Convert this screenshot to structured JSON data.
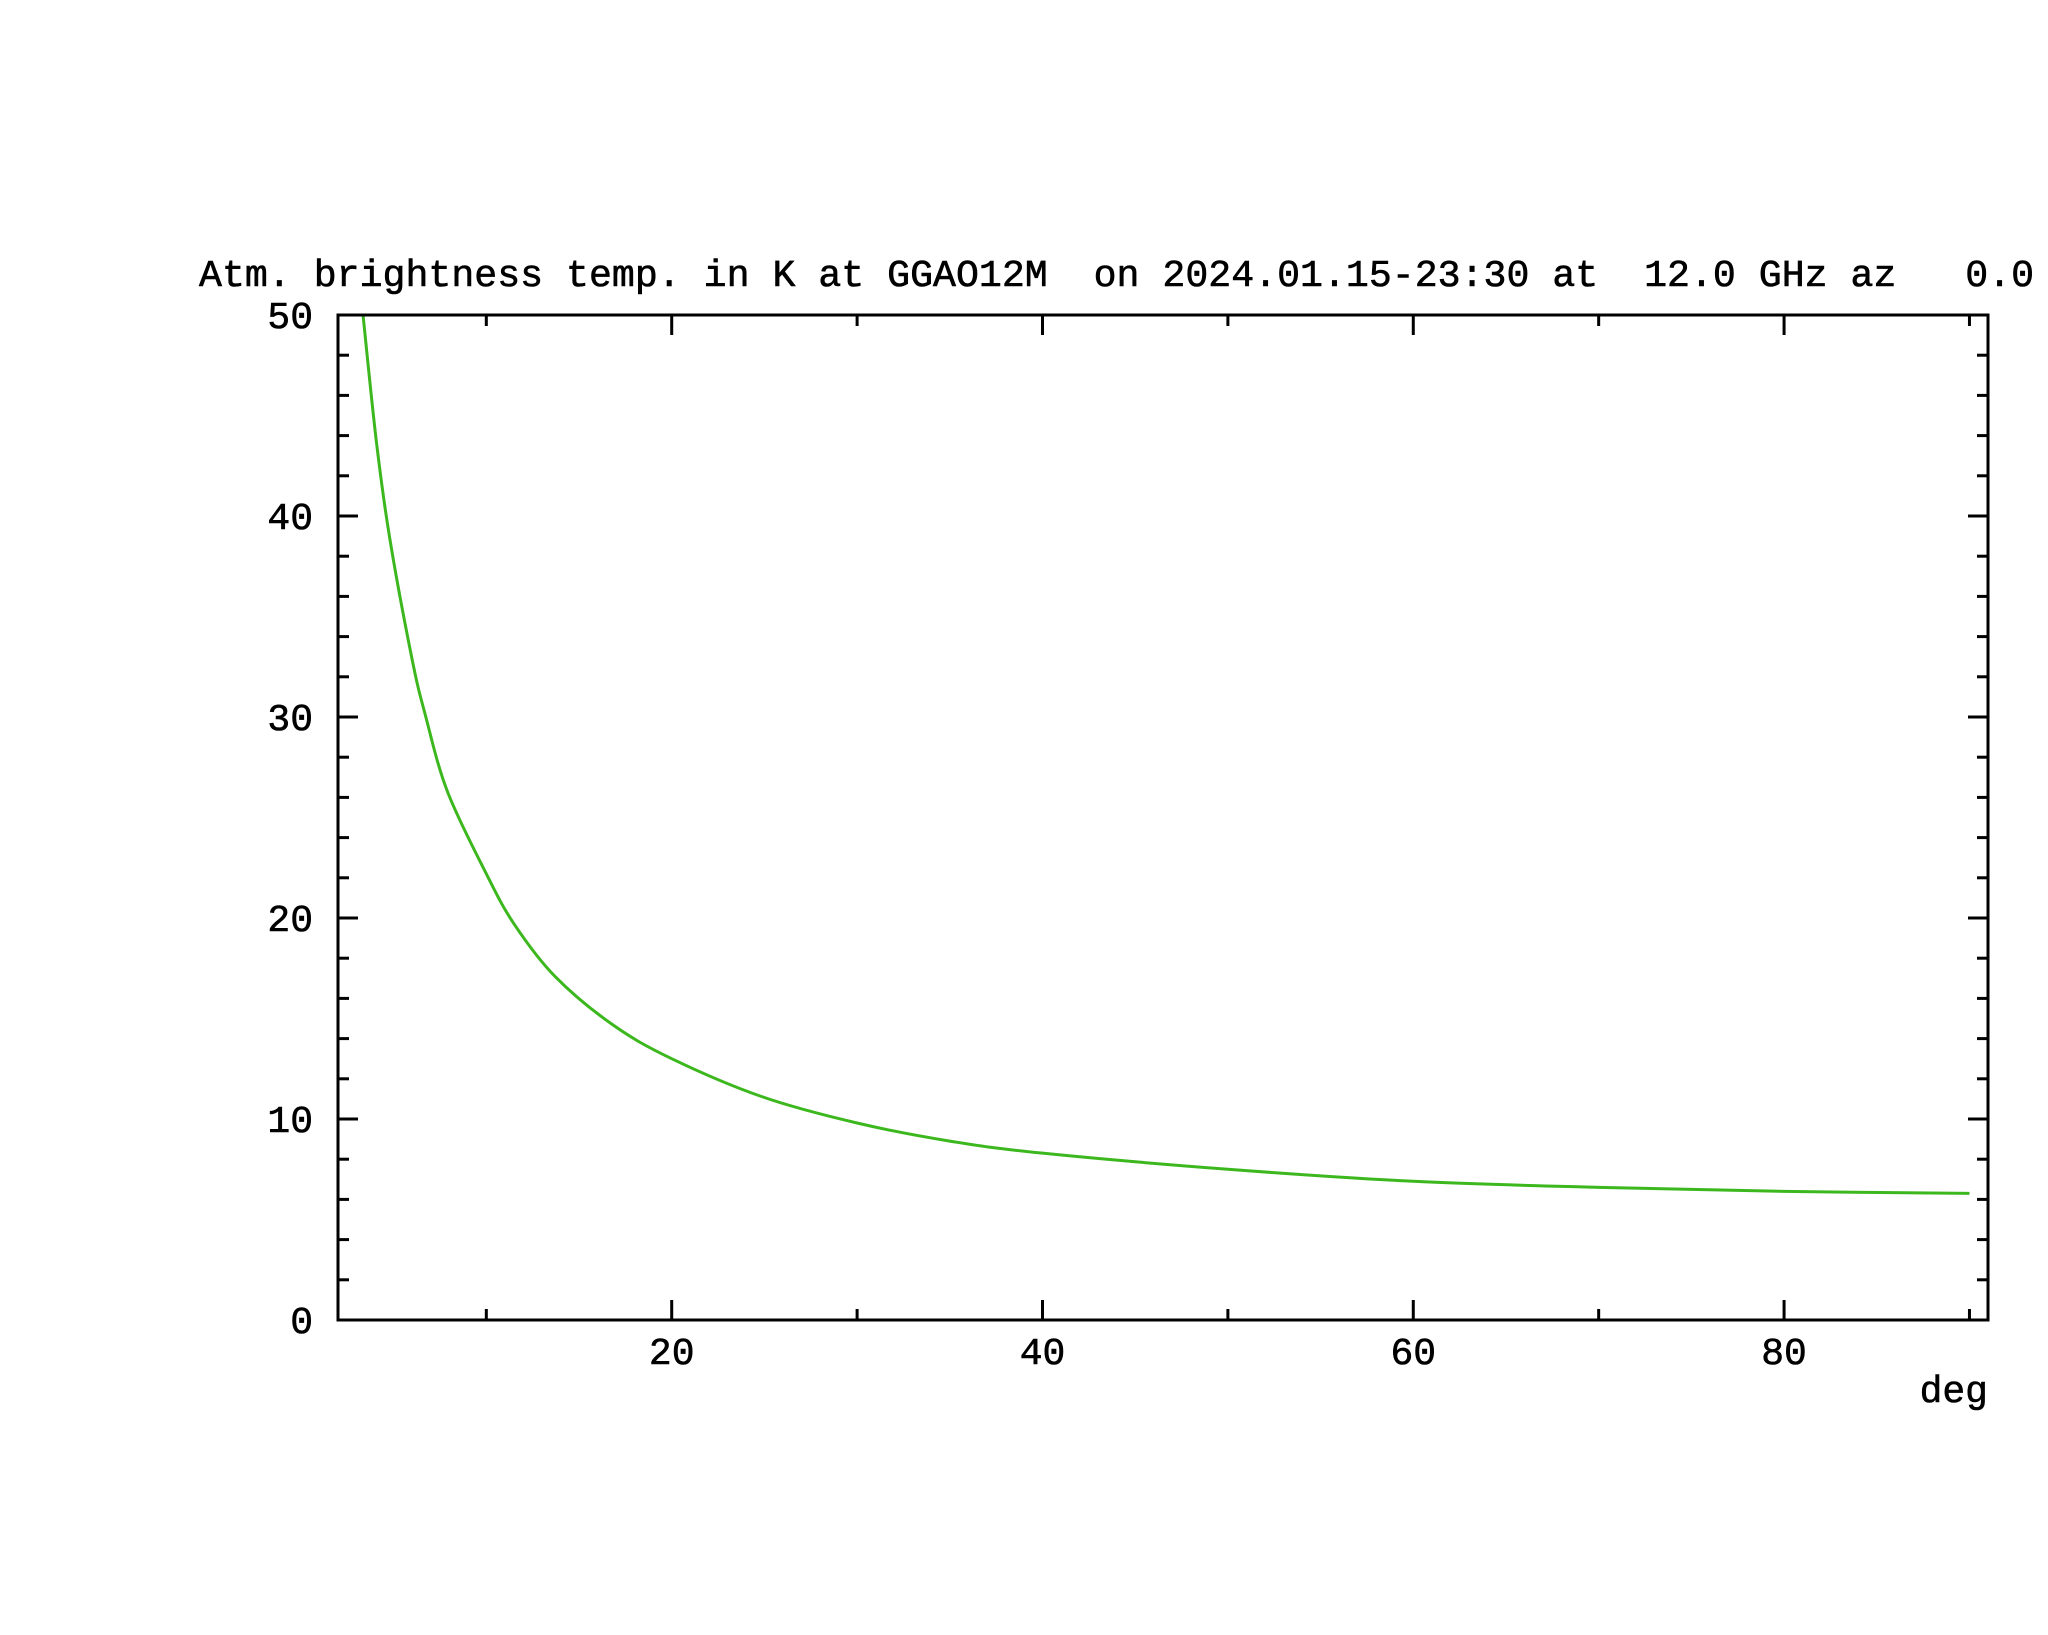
{
  "chart_data": {
    "type": "line",
    "title": "Atm. brightness temp. in K at GGAO12M  on 2024.01.15-23:30 at  12.0 GHz az   0.0",
    "xlabel": "deg",
    "ylabel": "",
    "xlim": [
      2,
      91
    ],
    "ylim": [
      0,
      50
    ],
    "x_ticks": [
      20,
      40,
      60,
      80
    ],
    "x_tick_labels": [
      "20",
      "40",
      "60",
      "80"
    ],
    "x_minor_step": 10,
    "y_ticks": [
      0,
      10,
      20,
      30,
      40,
      50
    ],
    "y_tick_labels": [
      "0",
      "10",
      "20",
      "30",
      "40",
      "50"
    ],
    "y_minor_step": 2,
    "grid": false,
    "series": [
      {
        "color": "#3cb81e",
        "x": [
          3.35,
          4.07,
          4.79,
          5.99,
          6.71,
          7.9,
          10,
          11.5,
          13.7,
          16.8,
          20,
          24.9,
          30,
          35,
          40,
          50,
          60,
          70,
          80,
          90
        ],
        "y": [
          50,
          43.7,
          38.9,
          32.9,
          30.1,
          26.3,
          22.2,
          19.7,
          17.1,
          14.7,
          13.0,
          11.1,
          9.8,
          8.9,
          8.3,
          7.5,
          6.9,
          6.6,
          6.4,
          6.3
        ]
      }
    ]
  }
}
